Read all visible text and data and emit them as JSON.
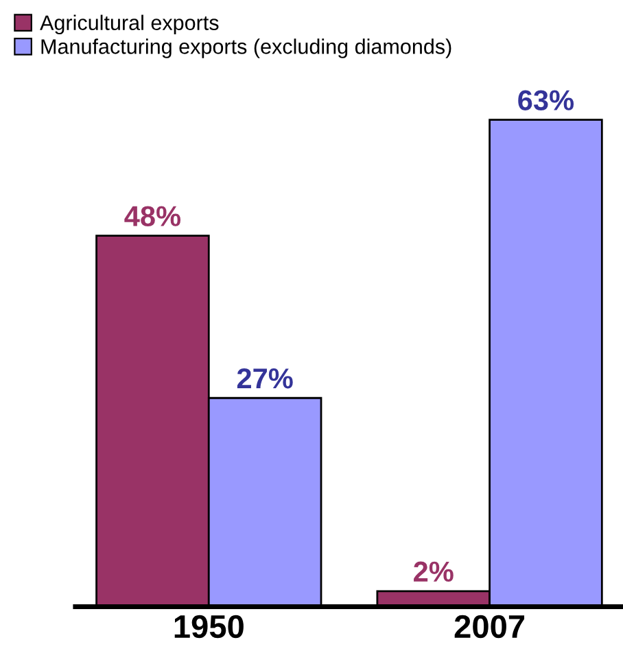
{
  "chart_data": {
    "type": "bar",
    "categories": [
      "1950",
      "2007"
    ],
    "series": [
      {
        "name": "Agricultural exports",
        "color": "#993366",
        "values": [
          48,
          2
        ],
        "value_labels": [
          "48%",
          "2%"
        ]
      },
      {
        "name": "Manufacturing exports (excluding diamonds)",
        "color": "#9999ff",
        "values": [
          27,
          63
        ],
        "value_labels": [
          "27%",
          "63%"
        ]
      }
    ],
    "legend": "top left",
    "grid": false
  }
}
